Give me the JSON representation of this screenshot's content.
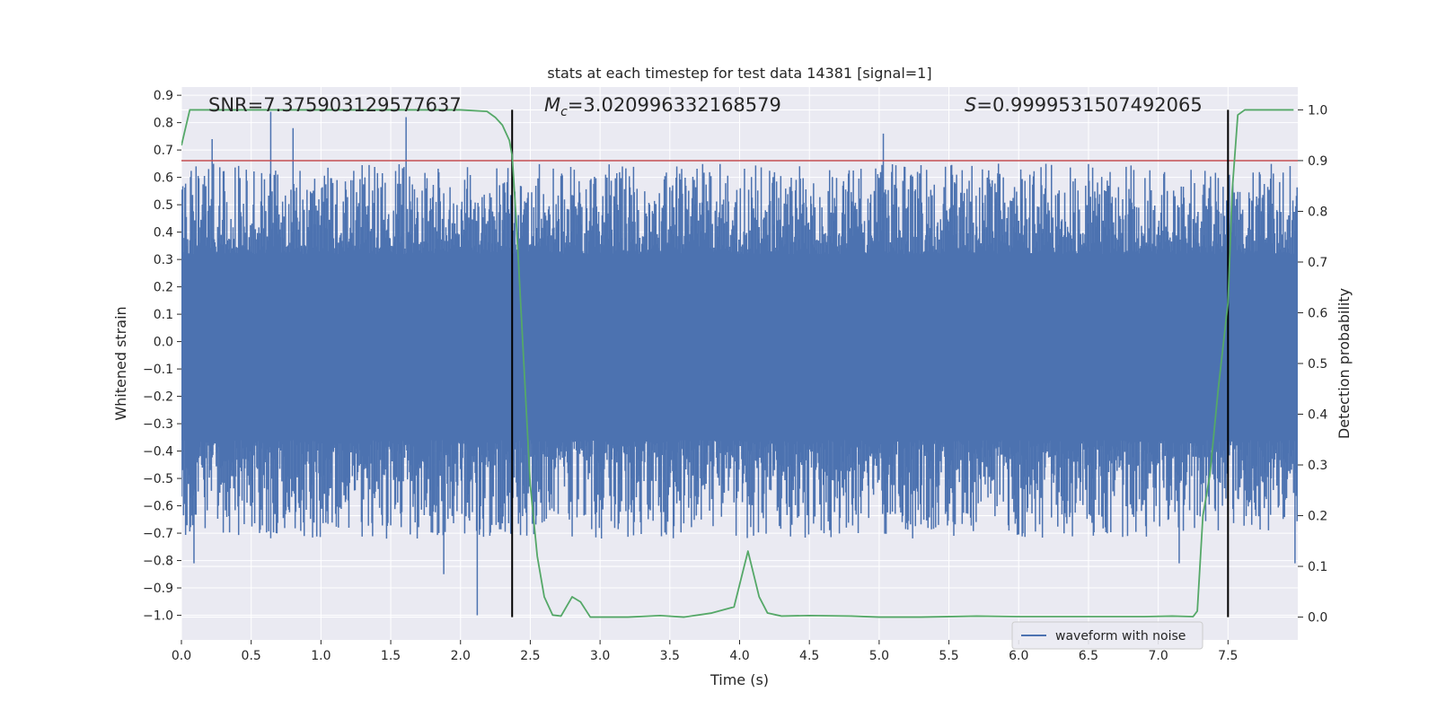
{
  "chart_data": {
    "type": "line",
    "title": "stats at each timestep for test data 14381 [signal=1]",
    "xlabel": "Time (s)",
    "ylabel_left": "Whitened strain",
    "ylabel_right": "Detection probability",
    "xlim": [
      0.0,
      8.0
    ],
    "ylim_left": [
      -1.09,
      0.93
    ],
    "ylim_right": [
      -0.045,
      1.045
    ],
    "x_ticks": [
      0.0,
      0.5,
      1.0,
      1.5,
      2.0,
      2.5,
      3.0,
      3.5,
      4.0,
      4.5,
      5.0,
      5.5,
      6.0,
      6.5,
      7.0,
      7.5
    ],
    "x_tick_labels": [
      "0.0",
      "0.5",
      "1.0",
      "1.5",
      "2.0",
      "2.5",
      "3.0",
      "3.5",
      "4.0",
      "4.5",
      "5.0",
      "5.5",
      "6.0",
      "6.5",
      "7.0",
      "7.5"
    ],
    "y_left_ticks": [
      0.9,
      0.8,
      0.7,
      0.6,
      0.5,
      0.4,
      0.3,
      0.2,
      0.1,
      0.0,
      -0.1,
      -0.2,
      -0.3,
      -0.4,
      -0.5,
      -0.6,
      -0.7,
      -0.8,
      -0.9,
      -1.0
    ],
    "y_left_tick_labels": [
      "0.9",
      "0.8",
      "0.7",
      "0.6",
      "0.5",
      "0.4",
      "0.3",
      "0.2",
      "0.1",
      "0.0",
      "−0.1",
      "−0.2",
      "−0.3",
      "−0.4",
      "−0.5",
      "−0.6",
      "−0.7",
      "−0.8",
      "−0.9",
      "−1.0"
    ],
    "y_right_ticks": [
      1.0,
      0.9,
      0.8,
      0.7,
      0.6,
      0.5,
      0.4,
      0.3,
      0.2,
      0.1,
      0.0
    ],
    "y_right_tick_labels": [
      "1.0",
      "0.9",
      "0.8",
      "0.7",
      "0.6",
      "0.5",
      "0.4",
      "0.3",
      "0.2",
      "0.1",
      "0.0"
    ],
    "annotations": {
      "snr": "SNR=7.375903129577637",
      "mc_symbol": "M",
      "mc_subscript": "c",
      "mc_value": "=3.020996332168579",
      "s_symbol": "S",
      "s_value": "=0.9999531507492065"
    },
    "threshold_probability": 0.9,
    "vertical_markers_s": [
      2.37,
      7.5
    ],
    "legend": {
      "label": "waveform with noise",
      "location": "lower right"
    },
    "waveform": {
      "name": "waveform with noise",
      "color": "#4c72b0",
      "sample_count": 1600,
      "core_band": [
        -0.32,
        0.3
      ],
      "notable_peaks": [
        {
          "t": 0.64,
          "y": 0.84
        },
        {
          "t": 1.61,
          "y": 0.82
        },
        {
          "t": 0.8,
          "y": 0.78
        },
        {
          "t": 0.22,
          "y": 0.74
        },
        {
          "t": 5.03,
          "y": 0.76
        },
        {
          "t": 2.12,
          "y": -1.0
        },
        {
          "t": 0.09,
          "y": -0.81
        },
        {
          "t": 1.88,
          "y": -0.85
        },
        {
          "t": 7.15,
          "y": -0.81
        },
        {
          "t": 7.98,
          "y": -0.81
        }
      ]
    },
    "probability": {
      "name": "detection probability",
      "color": "#55a868",
      "t": [
        0.0,
        0.06,
        0.15,
        0.3,
        0.5,
        0.8,
        1.0,
        1.5,
        2.0,
        2.19,
        2.25,
        2.3,
        2.35,
        2.37,
        2.4,
        2.45,
        2.5,
        2.55,
        2.6,
        2.66,
        2.72,
        2.8,
        2.86,
        2.93,
        3.0,
        3.2,
        3.43,
        3.6,
        3.8,
        3.96,
        4.06,
        4.14,
        4.2,
        4.3,
        4.5,
        4.8,
        5.0,
        5.3,
        5.7,
        6.0,
        6.5,
        6.9,
        7.1,
        7.25,
        7.28,
        7.32,
        7.37,
        7.43,
        7.5,
        7.53,
        7.57,
        7.62,
        7.7,
        7.97
      ],
      "p": [
        0.93,
        1.0,
        1.0,
        1.0,
        1.0,
        1.0,
        1.0,
        1.0,
        1.0,
        0.997,
        0.985,
        0.97,
        0.94,
        0.91,
        0.78,
        0.52,
        0.26,
        0.12,
        0.04,
        0.004,
        0.002,
        0.04,
        0.03,
        0.0,
        0.0,
        0.0,
        0.003,
        0.0,
        0.008,
        0.02,
        0.13,
        0.04,
        0.008,
        0.002,
        0.003,
        0.002,
        0.0,
        0.0,
        0.002,
        0.001,
        0.001,
        0.001,
        0.002,
        0.001,
        0.012,
        0.2,
        0.28,
        0.45,
        0.62,
        0.84,
        0.99,
        1.0,
        1.0,
        1.0
      ]
    },
    "colors": {
      "plot_background": "#eaeaf2",
      "grid": "#ffffff",
      "threshold_line": "#c44e52",
      "marker_line": "#000000",
      "waveform": "#4c72b0",
      "probability": "#55a868"
    }
  }
}
